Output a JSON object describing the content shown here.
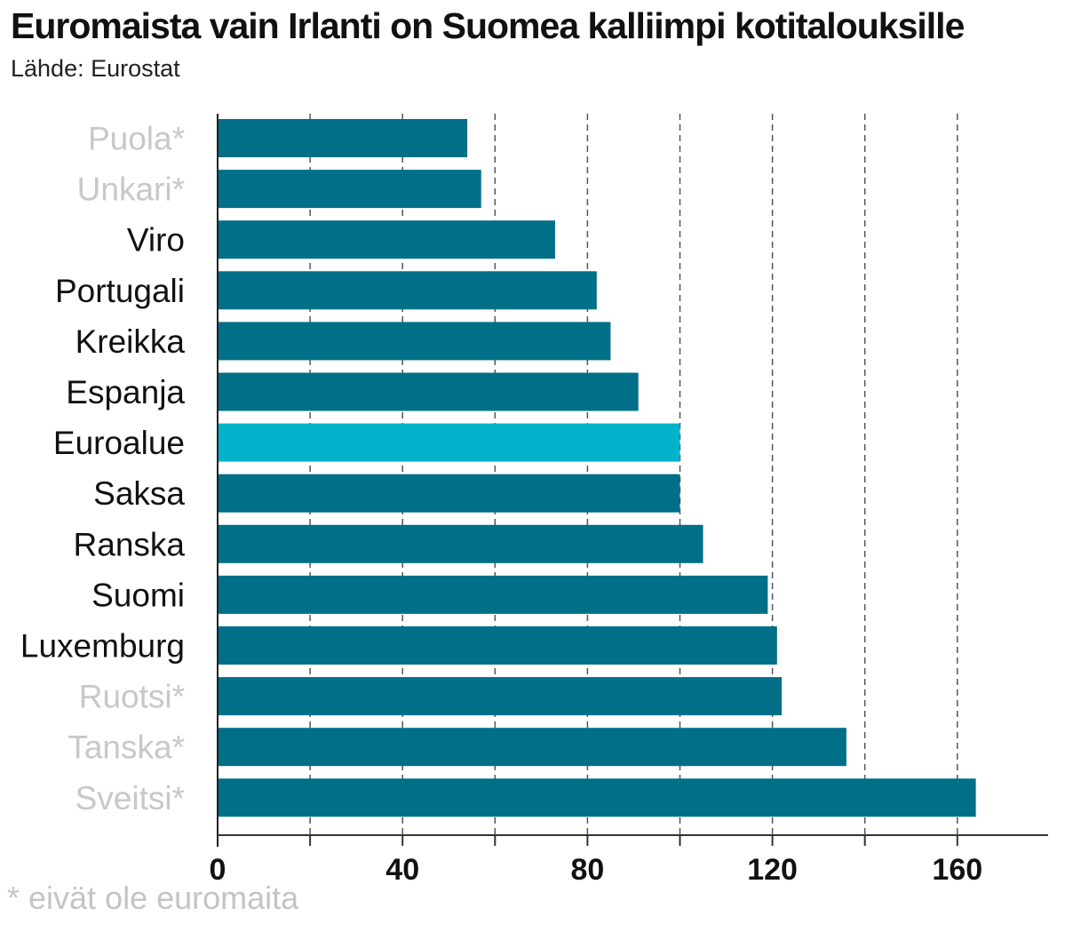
{
  "title": "Euromaista vain Irlanti on Suomea kalliimpi kotitalouksille",
  "subtitle": "Lähde: Eurostat",
  "footnote": "* eivät ole euromaita",
  "colors": {
    "bar": "#006f87",
    "highlight": "#00b3cb",
    "label": "#111111",
    "label_muted": "#c8c8c8",
    "grid": "#555555"
  },
  "chart_data": {
    "type": "bar",
    "orientation": "horizontal",
    "title": "Euromaista vain Irlanti on Suomea kalliimpi kotitalouksille",
    "categories": [
      "Puola*",
      "Unkari*",
      "Viro",
      "Portugali",
      "Kreikka",
      "Espanja",
      "Euroalue",
      "Saksa",
      "Ranska",
      "Suomi",
      "Luxemburg",
      "Ruotsi*",
      "Tanska*",
      "Sveitsi*"
    ],
    "values": [
      54,
      57,
      73,
      82,
      85,
      91,
      100,
      100,
      105,
      119,
      121,
      122,
      136,
      164
    ],
    "muted_categories": [
      "Puola*",
      "Unkari*",
      "Ruotsi*",
      "Tanska*",
      "Sveitsi*"
    ],
    "highlight_category": "Euroalue",
    "xlim": [
      0,
      180
    ],
    "xticks": [
      0,
      40,
      80,
      120,
      160
    ],
    "xtick_labels": [
      "0",
      "40",
      "80",
      "120",
      "160"
    ],
    "grid": "dashed vertical lines every 20",
    "xlabel": "",
    "ylabel": ""
  }
}
